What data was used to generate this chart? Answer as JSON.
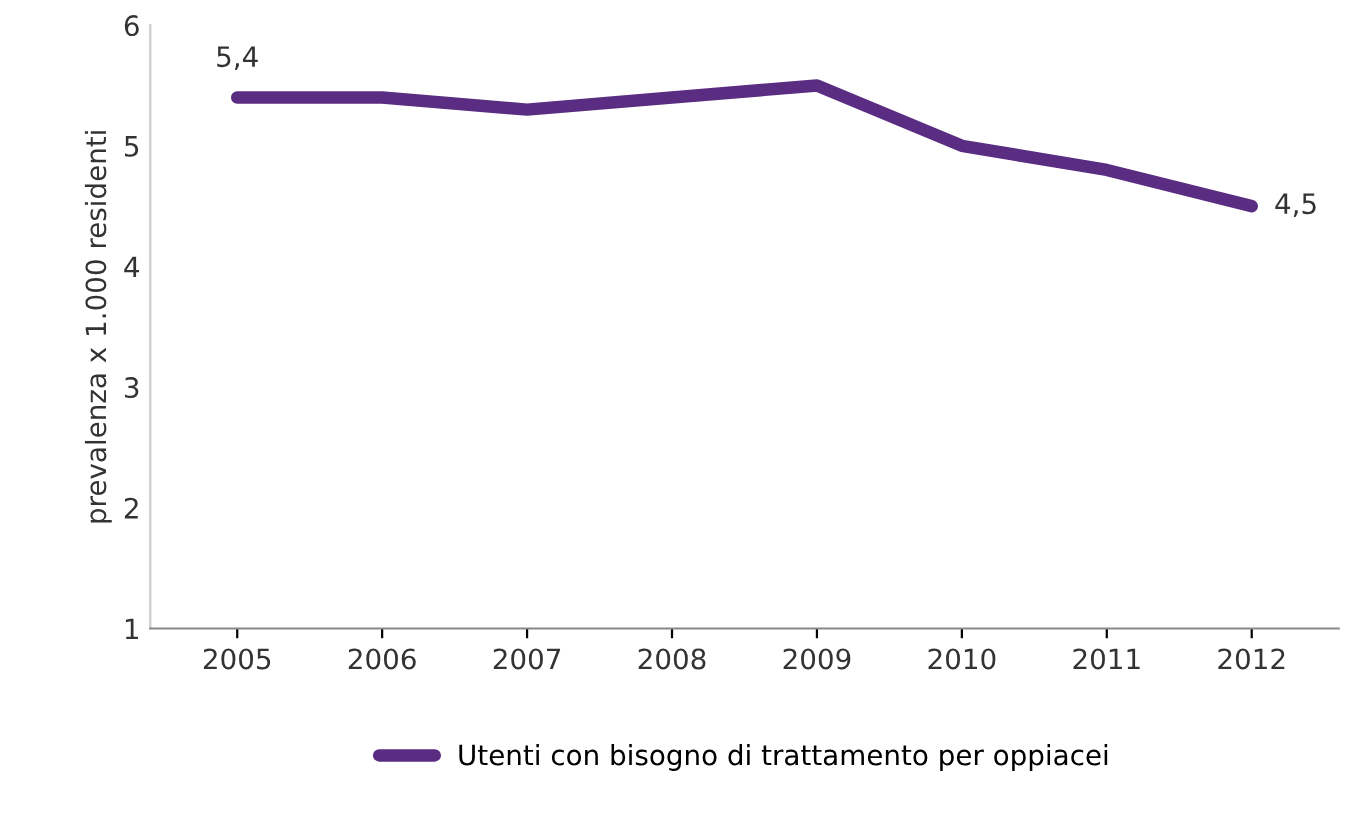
{
  "chart_data": {
    "type": "line",
    "ylabel": "prevalenza x 1.000 residenti",
    "categories": [
      "2005",
      "2006",
      "2007",
      "2008",
      "2009",
      "2010",
      "2011",
      "2012"
    ],
    "series": [
      {
        "name": "Utenti con bisogno di trattamento per oppiacei",
        "color": "#5a2d82",
        "values": [
          5.4,
          5.4,
          5.3,
          5.4,
          5.5,
          5.0,
          4.8,
          4.5
        ],
        "value_labels": [
          "5,4",
          null,
          null,
          null,
          null,
          null,
          null,
          "4,5"
        ]
      }
    ],
    "ylim": [
      1,
      6
    ],
    "yticks": [
      1,
      2,
      3,
      4,
      5,
      6
    ],
    "grid": false,
    "legend": "bottom",
    "marker": "none",
    "line_style": "solid"
  }
}
